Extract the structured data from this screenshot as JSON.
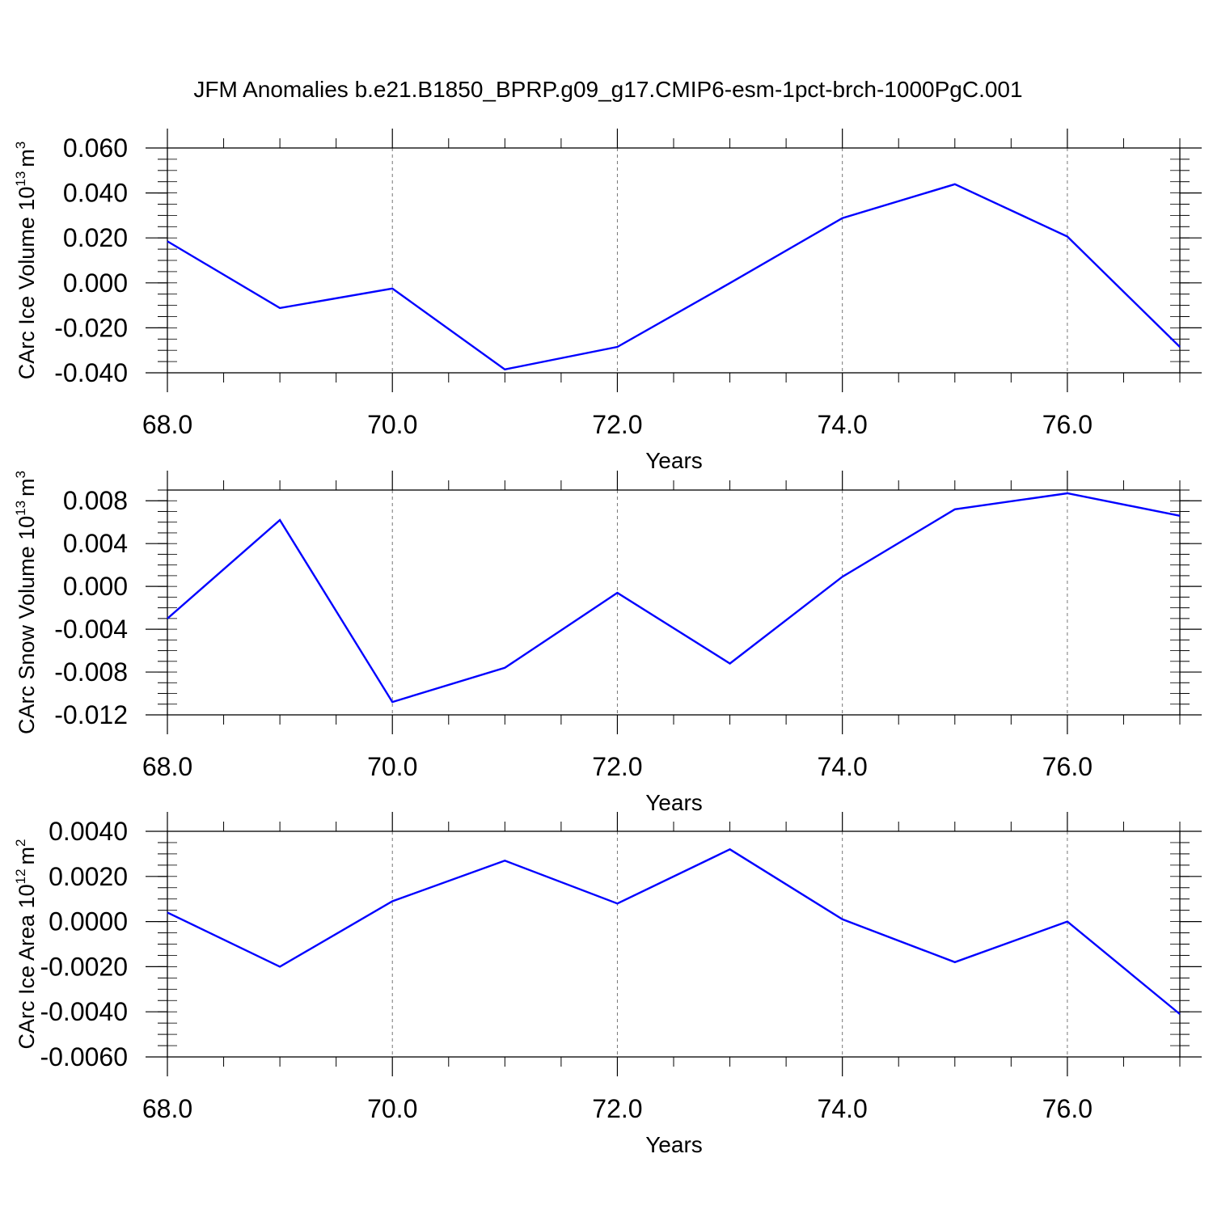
{
  "title": "JFM Anomalies b.e21.B1850_BPRP.g09_g17.CMIP6-esm-1pct-brch-1000PgC.001",
  "chart_data": [
    {
      "type": "line",
      "ylabel_main": "CArc Ice Volume 10",
      "ylabel_exp": "13",
      "ylabel_unit": "m",
      "ylabel_unit_exp": "3",
      "xlabel": "Years",
      "xlim": [
        68,
        77
      ],
      "ylim": [
        -0.04,
        0.06
      ],
      "grid": "vertical dashed at major x ticks",
      "x_ticks": [
        68,
        70,
        72,
        74,
        76
      ],
      "x_tick_labels": [
        "68.0",
        "70.0",
        "72.0",
        "74.0",
        "76.0"
      ],
      "y_ticks": [
        0.06,
        0.04,
        0.02,
        0.0,
        -0.02,
        -0.04
      ],
      "y_tick_labels": [
        "0.060",
        "0.040",
        "0.020",
        "0.000",
        "-0.020",
        "-0.040"
      ],
      "y_minor_step": 0.005,
      "color": "#0000ff",
      "x": [
        68,
        69,
        70,
        71,
        72,
        73,
        74,
        75,
        76,
        77
      ],
      "values": [
        0.0185,
        -0.0112,
        -0.0025,
        -0.0385,
        -0.0285,
        -0.0001,
        0.0288,
        0.0439,
        0.0206,
        -0.0285
      ]
    },
    {
      "type": "line",
      "ylabel_main": "CArc Snow Volume 10",
      "ylabel_exp": "13",
      "ylabel_unit": "m",
      "ylabel_unit_exp": "3",
      "xlabel": "Years",
      "xlim": [
        68,
        77
      ],
      "ylim": [
        -0.012,
        0.009
      ],
      "grid": "vertical dashed at major x ticks",
      "x_ticks": [
        68,
        70,
        72,
        74,
        76
      ],
      "x_tick_labels": [
        "68.0",
        "70.0",
        "72.0",
        "74.0",
        "76.0"
      ],
      "y_ticks": [
        0.008,
        0.004,
        0.0,
        -0.004,
        -0.008,
        -0.012
      ],
      "y_tick_labels": [
        "0.008",
        "0.004",
        "0.000",
        "-0.004",
        "-0.008",
        "-0.012"
      ],
      "y_minor_step": 0.001,
      "color": "#0000ff",
      "x": [
        68,
        69,
        70,
        71,
        72,
        73,
        74,
        75,
        76,
        77
      ],
      "values": [
        -0.003,
        0.0062,
        -0.0108,
        -0.0076,
        -0.0006,
        -0.0072,
        0.0009,
        0.0072,
        0.0087,
        0.0066
      ]
    },
    {
      "type": "line",
      "ylabel_main": "CArc Ice Area 10",
      "ylabel_exp": "12",
      "ylabel_unit": "m",
      "ylabel_unit_exp": "2",
      "xlabel": "Years",
      "xlim": [
        68,
        77
      ],
      "ylim": [
        -0.006,
        0.004
      ],
      "grid": "vertical dashed at major x ticks",
      "x_ticks": [
        68,
        70,
        72,
        74,
        76
      ],
      "x_tick_labels": [
        "68.0",
        "70.0",
        "72.0",
        "74.0",
        "76.0"
      ],
      "y_ticks": [
        0.004,
        0.002,
        0.0,
        -0.002,
        -0.004,
        -0.006
      ],
      "y_tick_labels": [
        "0.0040",
        "0.0020",
        "0.0000",
        "-0.0020",
        "-0.0040",
        "-0.0060"
      ],
      "y_minor_step": 0.0005,
      "color": "#0000ff",
      "x": [
        68,
        69,
        70,
        71,
        72,
        73,
        74,
        75,
        76,
        77
      ],
      "values": [
        0.0004,
        -0.002,
        0.0009,
        0.0027,
        0.0008,
        0.0032,
        0.0001,
        -0.0018,
        0.0,
        -0.0041
      ]
    }
  ]
}
